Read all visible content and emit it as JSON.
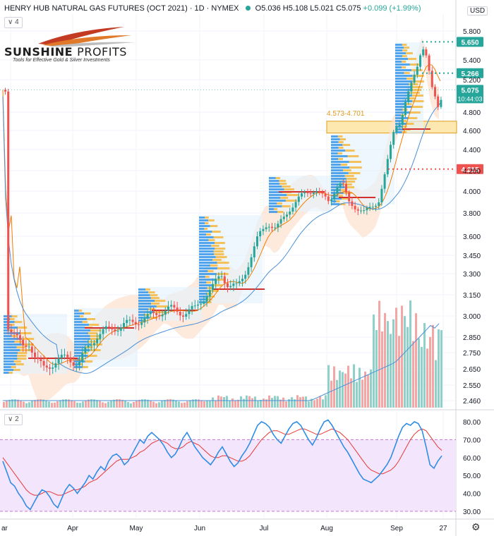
{
  "header": {
    "title": "HENRY HUB NATURAL GAS FUTURES (OCT 2021) · 1D · NYMEX",
    "ohlc": "O5.036 H5.108 L5.021 C5.075",
    "change": "+0.099 (+1.99%)",
    "main_pane_button": "∨ 4",
    "rsi_pane_button": "∨ 2",
    "currency": "USD"
  },
  "logo": {
    "brand_1": "SUNSHINE",
    "brand_2": "PROFITS",
    "tagline": "Tools for Effective Gold & Silver Investments"
  },
  "colors": {
    "up": "#26a69a",
    "down": "#ef5350",
    "volume_up": "#8fd1c8",
    "volume_down": "#f3a6a4",
    "ma_fast": "#f57c00",
    "ma_slow": "#4a90d9",
    "band_fill": "#fde3d0",
    "rsi_line": "#2f8de4",
    "rsi_ma": "#e53935",
    "rsi_band": "#f3e5fb",
    "zone": "#fde9b0",
    "zone_border": "#e09a1e"
  },
  "chart_data": {
    "type": "candlestick",
    "title": "HENRY HUB NATURAL GAS FUTURES (OCT 2021) · 1D · NYMEX",
    "price_axis_ticks": [
      "5.800",
      "5.400",
      "5.200",
      "4.800",
      "4.600",
      "4.400",
      "4.200",
      "4.000",
      "3.800",
      "3.600",
      "3.450",
      "3.300",
      "3.150",
      "3.000",
      "2.850",
      "2.750",
      "2.650",
      "2.550",
      "2.460"
    ],
    "time_axis_labels": [
      "ar",
      "Apr",
      "May",
      "Jun",
      "Jul",
      "Aug",
      "Sep",
      "27"
    ],
    "price_labels": [
      {
        "value": "5.650",
        "color": "#26a69a",
        "style": "dotted-green"
      },
      {
        "value": "5.266",
        "color": "#26a69a",
        "style": "dotted-green"
      },
      {
        "value": "5.075",
        "sub": "10:44:03",
        "color": "#26a69a",
        "style": "last"
      },
      {
        "value": "4.215",
        "color": "#ef5350",
        "style": "dotted-red"
      }
    ],
    "zone": {
      "label": "4.573-4.701",
      "low": 4.573,
      "high": 4.701
    },
    "rsi": {
      "ticks": [
        "80.00",
        "70.00",
        "60.00",
        "50.00",
        "40.00",
        "30.00"
      ],
      "overbought": 70,
      "oversold": 30,
      "values": [
        58,
        52,
        46,
        44,
        40,
        37,
        33,
        31,
        35,
        39,
        42,
        41,
        38,
        34,
        32,
        37,
        42,
        45,
        43,
        40,
        43,
        46,
        50,
        48,
        52,
        55,
        53,
        58,
        61,
        62,
        60,
        56,
        58,
        62,
        66,
        70,
        68,
        72,
        74,
        72,
        70,
        67,
        63,
        60,
        62,
        66,
        71,
        74,
        70,
        66,
        63,
        60,
        58,
        56,
        59,
        63,
        66,
        62,
        58,
        55,
        57,
        61,
        64,
        68,
        73,
        78,
        80,
        79,
        77,
        73,
        70,
        68,
        72,
        76,
        79,
        80,
        78,
        74,
        70,
        67,
        71,
        76,
        80,
        81,
        78,
        74,
        70,
        66,
        63,
        59,
        55,
        51,
        48,
        47,
        46,
        48,
        50,
        53,
        56,
        60,
        66,
        72,
        77,
        79,
        78,
        80,
        79,
        75,
        66,
        56,
        54,
        58,
        61
      ]
    },
    "rsi_ma": [
      60,
      57,
      54,
      51,
      48,
      45,
      42,
      40,
      39,
      39,
      40,
      41,
      41,
      40,
      39,
      39,
      40,
      41,
      42,
      42,
      43,
      44,
      46,
      47,
      48,
      50,
      52,
      54,
      56,
      58,
      59,
      59,
      59,
      60,
      61,
      63,
      64,
      66,
      68,
      69,
      70,
      69,
      68,
      66,
      65,
      65,
      66,
      68,
      69,
      68,
      67,
      65,
      63,
      61,
      60,
      60,
      61,
      61,
      60,
      59,
      58,
      58,
      59,
      61,
      64,
      67,
      70,
      72,
      74,
      75,
      75,
      74,
      73,
      73,
      74,
      75,
      76,
      76,
      75,
      74,
      73,
      73,
      74,
      75,
      76,
      75,
      74,
      72,
      70,
      67,
      64,
      61,
      58,
      55,
      53,
      52,
      51,
      51,
      52,
      53,
      55,
      58,
      62,
      66,
      70,
      73,
      75,
      76,
      75,
      72,
      69,
      66,
      64
    ]
  }
}
